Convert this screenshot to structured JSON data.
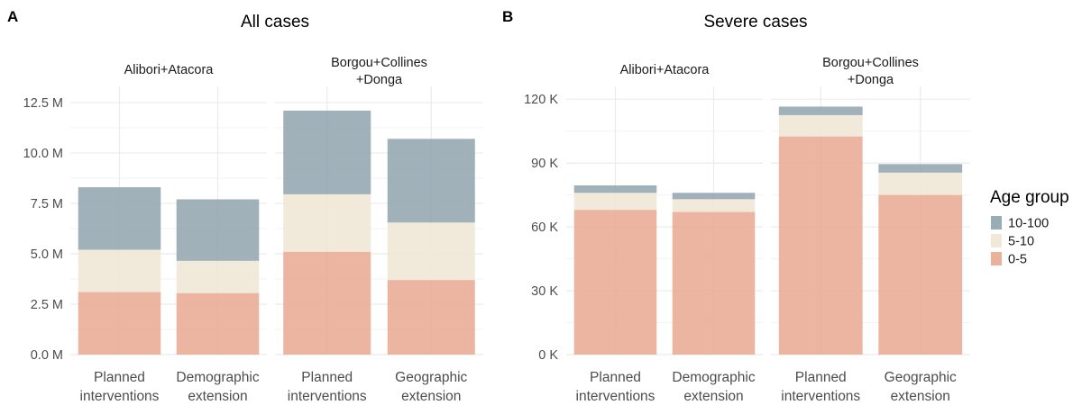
{
  "legend": {
    "title": "Age group",
    "items": [
      {
        "label": "10-100",
        "color": "#8fa3ae"
      },
      {
        "label": "5-10",
        "color": "#efe6d3"
      },
      {
        "label": "0-5",
        "color": "#e8a890"
      }
    ]
  },
  "chart_data": [
    {
      "type": "bar",
      "stacked": true,
      "panel_letter": "A",
      "title": "All cases",
      "y_tick_labels": [
        "0.0 M",
        "2.5 M",
        "5.0 M",
        "7.5 M",
        "10.0 M",
        "12.5 M"
      ],
      "ylim": [
        0,
        13.3
      ],
      "y_unit": "M",
      "grid": true,
      "facets": [
        {
          "label_lines": [
            "Alibori+Atacora"
          ],
          "categories": [
            [
              "Planned",
              "interventions"
            ],
            [
              "Demographic",
              "extension"
            ]
          ],
          "series": [
            {
              "name": "0-5",
              "values": [
                3.1,
                3.05
              ]
            },
            {
              "name": "5-10",
              "values": [
                2.1,
                1.6
              ]
            },
            {
              "name": "10-100",
              "values": [
                3.1,
                3.05
              ]
            }
          ]
        },
        {
          "label_lines": [
            "Borgou+Collines",
            "+Donga"
          ],
          "categories": [
            [
              "Planned",
              "interventions"
            ],
            [
              "Geographic",
              "extension"
            ]
          ],
          "series": [
            {
              "name": "0-5",
              "values": [
                5.1,
                3.7
              ]
            },
            {
              "name": "5-10",
              "values": [
                2.85,
                2.85
              ]
            },
            {
              "name": "10-100",
              "values": [
                4.15,
                4.15
              ]
            }
          ]
        }
      ]
    },
    {
      "type": "bar",
      "stacked": true,
      "panel_letter": "B",
      "title": "Severe cases",
      "y_tick_labels": [
        "0 K",
        "30 K",
        "60 K",
        "90 K",
        "120 K"
      ],
      "ylim": [
        0,
        126
      ],
      "y_unit": "K",
      "grid": true,
      "facets": [
        {
          "label_lines": [
            "Alibori+Atacora"
          ],
          "categories": [
            [
              "Planned",
              "interventions"
            ],
            [
              "Demographic",
              "extension"
            ]
          ],
          "series": [
            {
              "name": "0-5",
              "values": [
                68,
                67
              ]
            },
            {
              "name": "5-10",
              "values": [
                8,
                6
              ]
            },
            {
              "name": "10-100",
              "values": [
                3.5,
                3
              ]
            }
          ]
        },
        {
          "label_lines": [
            "Borgou+Collines",
            "+Donga"
          ],
          "categories": [
            [
              "Planned",
              "interventions"
            ],
            [
              "Geographic",
              "extension"
            ]
          ],
          "series": [
            {
              "name": "0-5",
              "values": [
                102.5,
                75
              ]
            },
            {
              "name": "5-10",
              "values": [
                10,
                10.5
              ]
            },
            {
              "name": "10-100",
              "values": [
                4,
                4
              ]
            }
          ]
        }
      ]
    }
  ]
}
